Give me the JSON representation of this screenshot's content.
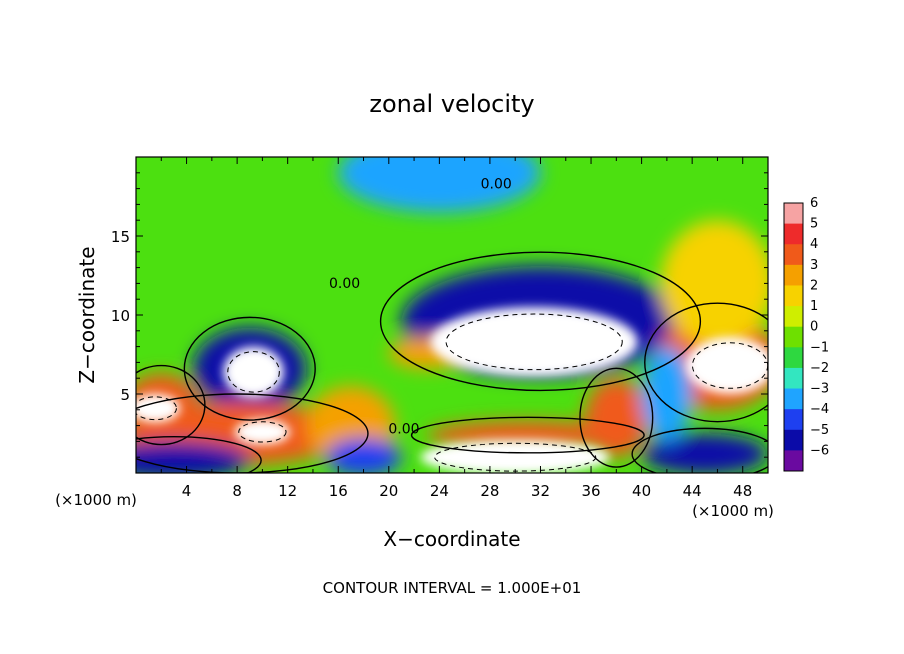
{
  "chart_data": {
    "type": "heatmap",
    "title": "zonal velocity",
    "xlabel": "X−coordinate",
    "ylabel": "Z−coordinate",
    "x_unit_label_left": "(×1000 m)",
    "x_unit_label_right": "(×1000 m)",
    "footer": "CONTOUR INTERVAL = 1.000E+01",
    "xlim": [
      0,
      50
    ],
    "ylim": [
      0,
      20
    ],
    "x_ticks": [
      "4",
      "8",
      "12",
      "16",
      "20",
      "24",
      "28",
      "32",
      "36",
      "40",
      "44",
      "48"
    ],
    "y_ticks": [
      "5",
      "10",
      "15"
    ],
    "colorbar": {
      "range": [
        -6,
        6
      ],
      "tick_labels": [
        "6",
        "5",
        "4",
        "3",
        "2",
        "1",
        "0",
        "−1",
        "−2",
        "−3",
        "−4",
        "−5",
        "−6"
      ],
      "colors": [
        "#f6a3a3",
        "#ee2b2b",
        "#f05a1a",
        "#f5a000",
        "#f7d200",
        "#cfee00",
        "#6ee000",
        "#2ed840",
        "#33e6c0",
        "#1fa4ff",
        "#1e40f0",
        "#0b0ba8",
        "#6a0aa0"
      ],
      "saturated_high_color": "#ffffff"
    },
    "contour_labels": [
      {
        "text": "0.00",
        "x": 28.5,
        "y": 18.0
      },
      {
        "text": "0.00",
        "x": 16.5,
        "y": 11.7
      },
      {
        "text": "0.00",
        "x": 21.2,
        "y": 2.5
      }
    ],
    "field_features": [
      {
        "kind": "jet",
        "value": -5,
        "cx": 32,
        "cy": 9.6,
        "rx": 11,
        "ry": 3.5
      },
      {
        "kind": "core",
        "value": 8,
        "cx": 31.5,
        "cy": 8.3,
        "rx": 8.2,
        "ry": 2.2
      },
      {
        "kind": "jet",
        "value": -4.5,
        "cx": 9,
        "cy": 6.6,
        "rx": 4.5,
        "ry": 2.6
      },
      {
        "kind": "core",
        "value": 8,
        "cx": 9.3,
        "cy": 6.4,
        "rx": 2.4,
        "ry": 1.6
      },
      {
        "kind": "jet",
        "value": 4.5,
        "cx": 8,
        "cy": 2.5,
        "rx": 9,
        "ry": 2
      },
      {
        "kind": "core",
        "value": 7,
        "cx": 10,
        "cy": 2.6,
        "rx": 2.2,
        "ry": 0.8
      },
      {
        "kind": "jet",
        "value": 4.5,
        "cx": 31,
        "cy": 2.4,
        "rx": 8,
        "ry": 0.9
      },
      {
        "kind": "core",
        "value": 7,
        "cx": 30,
        "cy": 1,
        "rx": 7.5,
        "ry": 1.1
      },
      {
        "kind": "jet",
        "value": 4.5,
        "cx": 46,
        "cy": 7,
        "rx": 5,
        "ry": 3
      },
      {
        "kind": "core",
        "value": 7,
        "cx": 47,
        "cy": 6.8,
        "rx": 3.5,
        "ry": 1.8
      },
      {
        "kind": "jet",
        "value": 2.5,
        "cx": 46,
        "cy": 12,
        "rx": 4.5,
        "ry": 4
      },
      {
        "kind": "jet",
        "value": -2.5,
        "cx": 24,
        "cy": 19,
        "rx": 8,
        "ry": 2.5
      },
      {
        "kind": "jet",
        "value": 4.5,
        "cx": 2,
        "cy": 4.3,
        "rx": 3,
        "ry": 2
      },
      {
        "kind": "core",
        "value": 7,
        "cx": 1.5,
        "cy": 4.1,
        "rx": 2,
        "ry": 0.9
      },
      {
        "kind": "jet",
        "value": 3,
        "cx": 17,
        "cy": 3,
        "rx": 3.5,
        "ry": 2.5
      },
      {
        "kind": "jet",
        "value": 3,
        "cx": 23,
        "cy": 7.6,
        "rx": 3,
        "ry": 1
      },
      {
        "kind": "jet",
        "value": -4.5,
        "cx": 3,
        "cy": 0.8,
        "rx": 6,
        "ry": 1.2
      },
      {
        "kind": "jet",
        "value": -4.5,
        "cx": 45,
        "cy": 1.2,
        "rx": 5,
        "ry": 1.3
      },
      {
        "kind": "jet",
        "value": -3.5,
        "cx": 18,
        "cy": 1,
        "rx": 3,
        "ry": 1.2
      },
      {
        "kind": "jet",
        "value": 4,
        "cx": 38,
        "cy": 3.5,
        "rx": 2.5,
        "ry": 2.5
      },
      {
        "kind": "jet",
        "value": -2.5,
        "cx": 42,
        "cy": 5,
        "rx": 2,
        "ry": 3
      }
    ],
    "grid": false,
    "legend": "right colorbar"
  }
}
